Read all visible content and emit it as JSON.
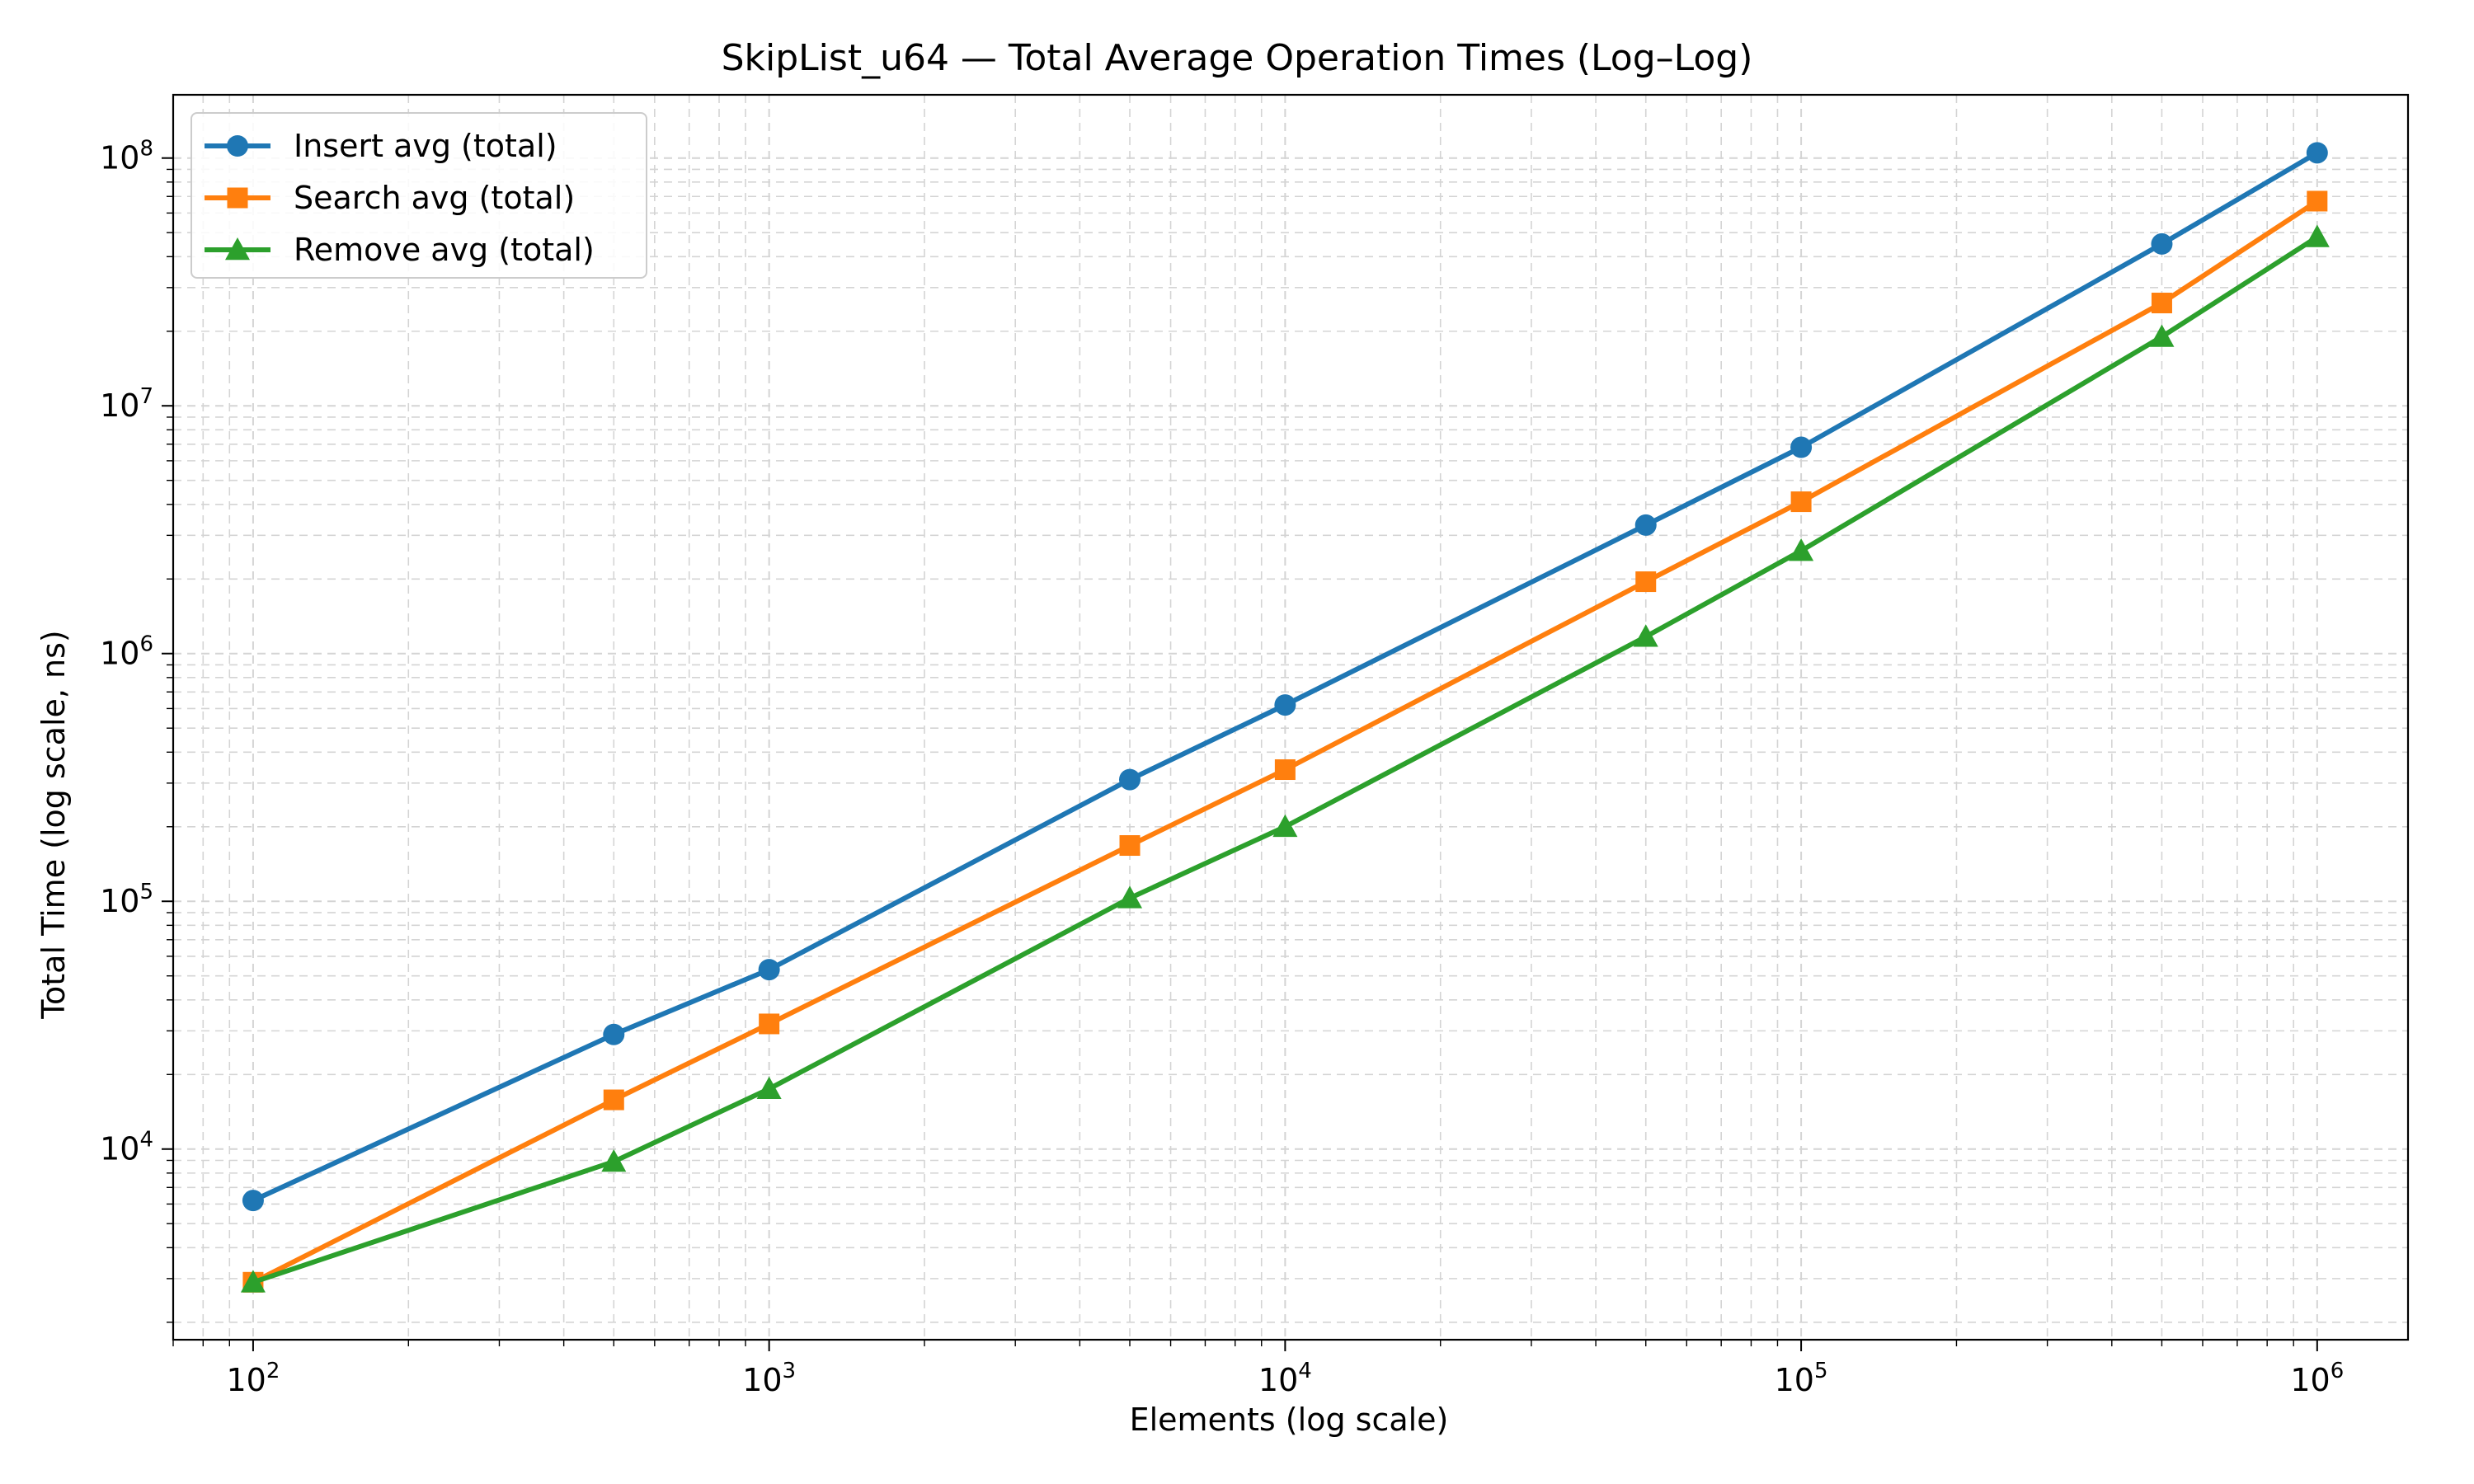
{
  "chart_data": {
    "type": "line",
    "title": "SkipList_u64 — Total Average Operation Times (Log–Log)",
    "xlabel": "Elements (log scale)",
    "ylabel": "Total Time (log scale, ns)",
    "xscale": "log",
    "yscale": "log",
    "xlim": [
      70,
      1500000
    ],
    "ylim": [
      1700,
      180000000
    ],
    "xticks": [
      {
        "base": "10",
        "exp": "2",
        "value": 100
      },
      {
        "base": "10",
        "exp": "3",
        "value": 1000
      },
      {
        "base": "10",
        "exp": "4",
        "value": 10000
      },
      {
        "base": "10",
        "exp": "5",
        "value": 100000
      },
      {
        "base": "10",
        "exp": "6",
        "value": 1000000
      }
    ],
    "yticks": [
      {
        "base": "10",
        "exp": "4",
        "value": 10000
      },
      {
        "base": "10",
        "exp": "5",
        "value": 100000
      },
      {
        "base": "10",
        "exp": "6",
        "value": 1000000
      },
      {
        "base": "10",
        "exp": "7",
        "value": 10000000
      },
      {
        "base": "10",
        "exp": "8",
        "value": 100000000
      }
    ],
    "grid": true,
    "legend_position": "top-left",
    "x": [
      100,
      500,
      1000,
      5000,
      10000,
      50000,
      100000,
      500000,
      1000000
    ],
    "series": [
      {
        "name": "Insert avg (total)",
        "color": "#1f77b4",
        "marker": "circle",
        "values": [
          6200,
          29000,
          53000,
          310000,
          620000,
          3300000,
          6800000,
          45000000,
          105000000
        ]
      },
      {
        "name": "Search avg (total)",
        "color": "#ff7f0e",
        "marker": "square",
        "values": [
          2900,
          15800,
          32000,
          168000,
          340000,
          1950000,
          4100000,
          26000000,
          67000000
        ]
      },
      {
        "name": "Remove avg (total)",
        "color": "#2ca02c",
        "marker": "triangle",
        "values": [
          2900,
          8900,
          17500,
          103000,
          200000,
          1170000,
          2600000,
          19000000,
          48000000
        ]
      }
    ]
  }
}
